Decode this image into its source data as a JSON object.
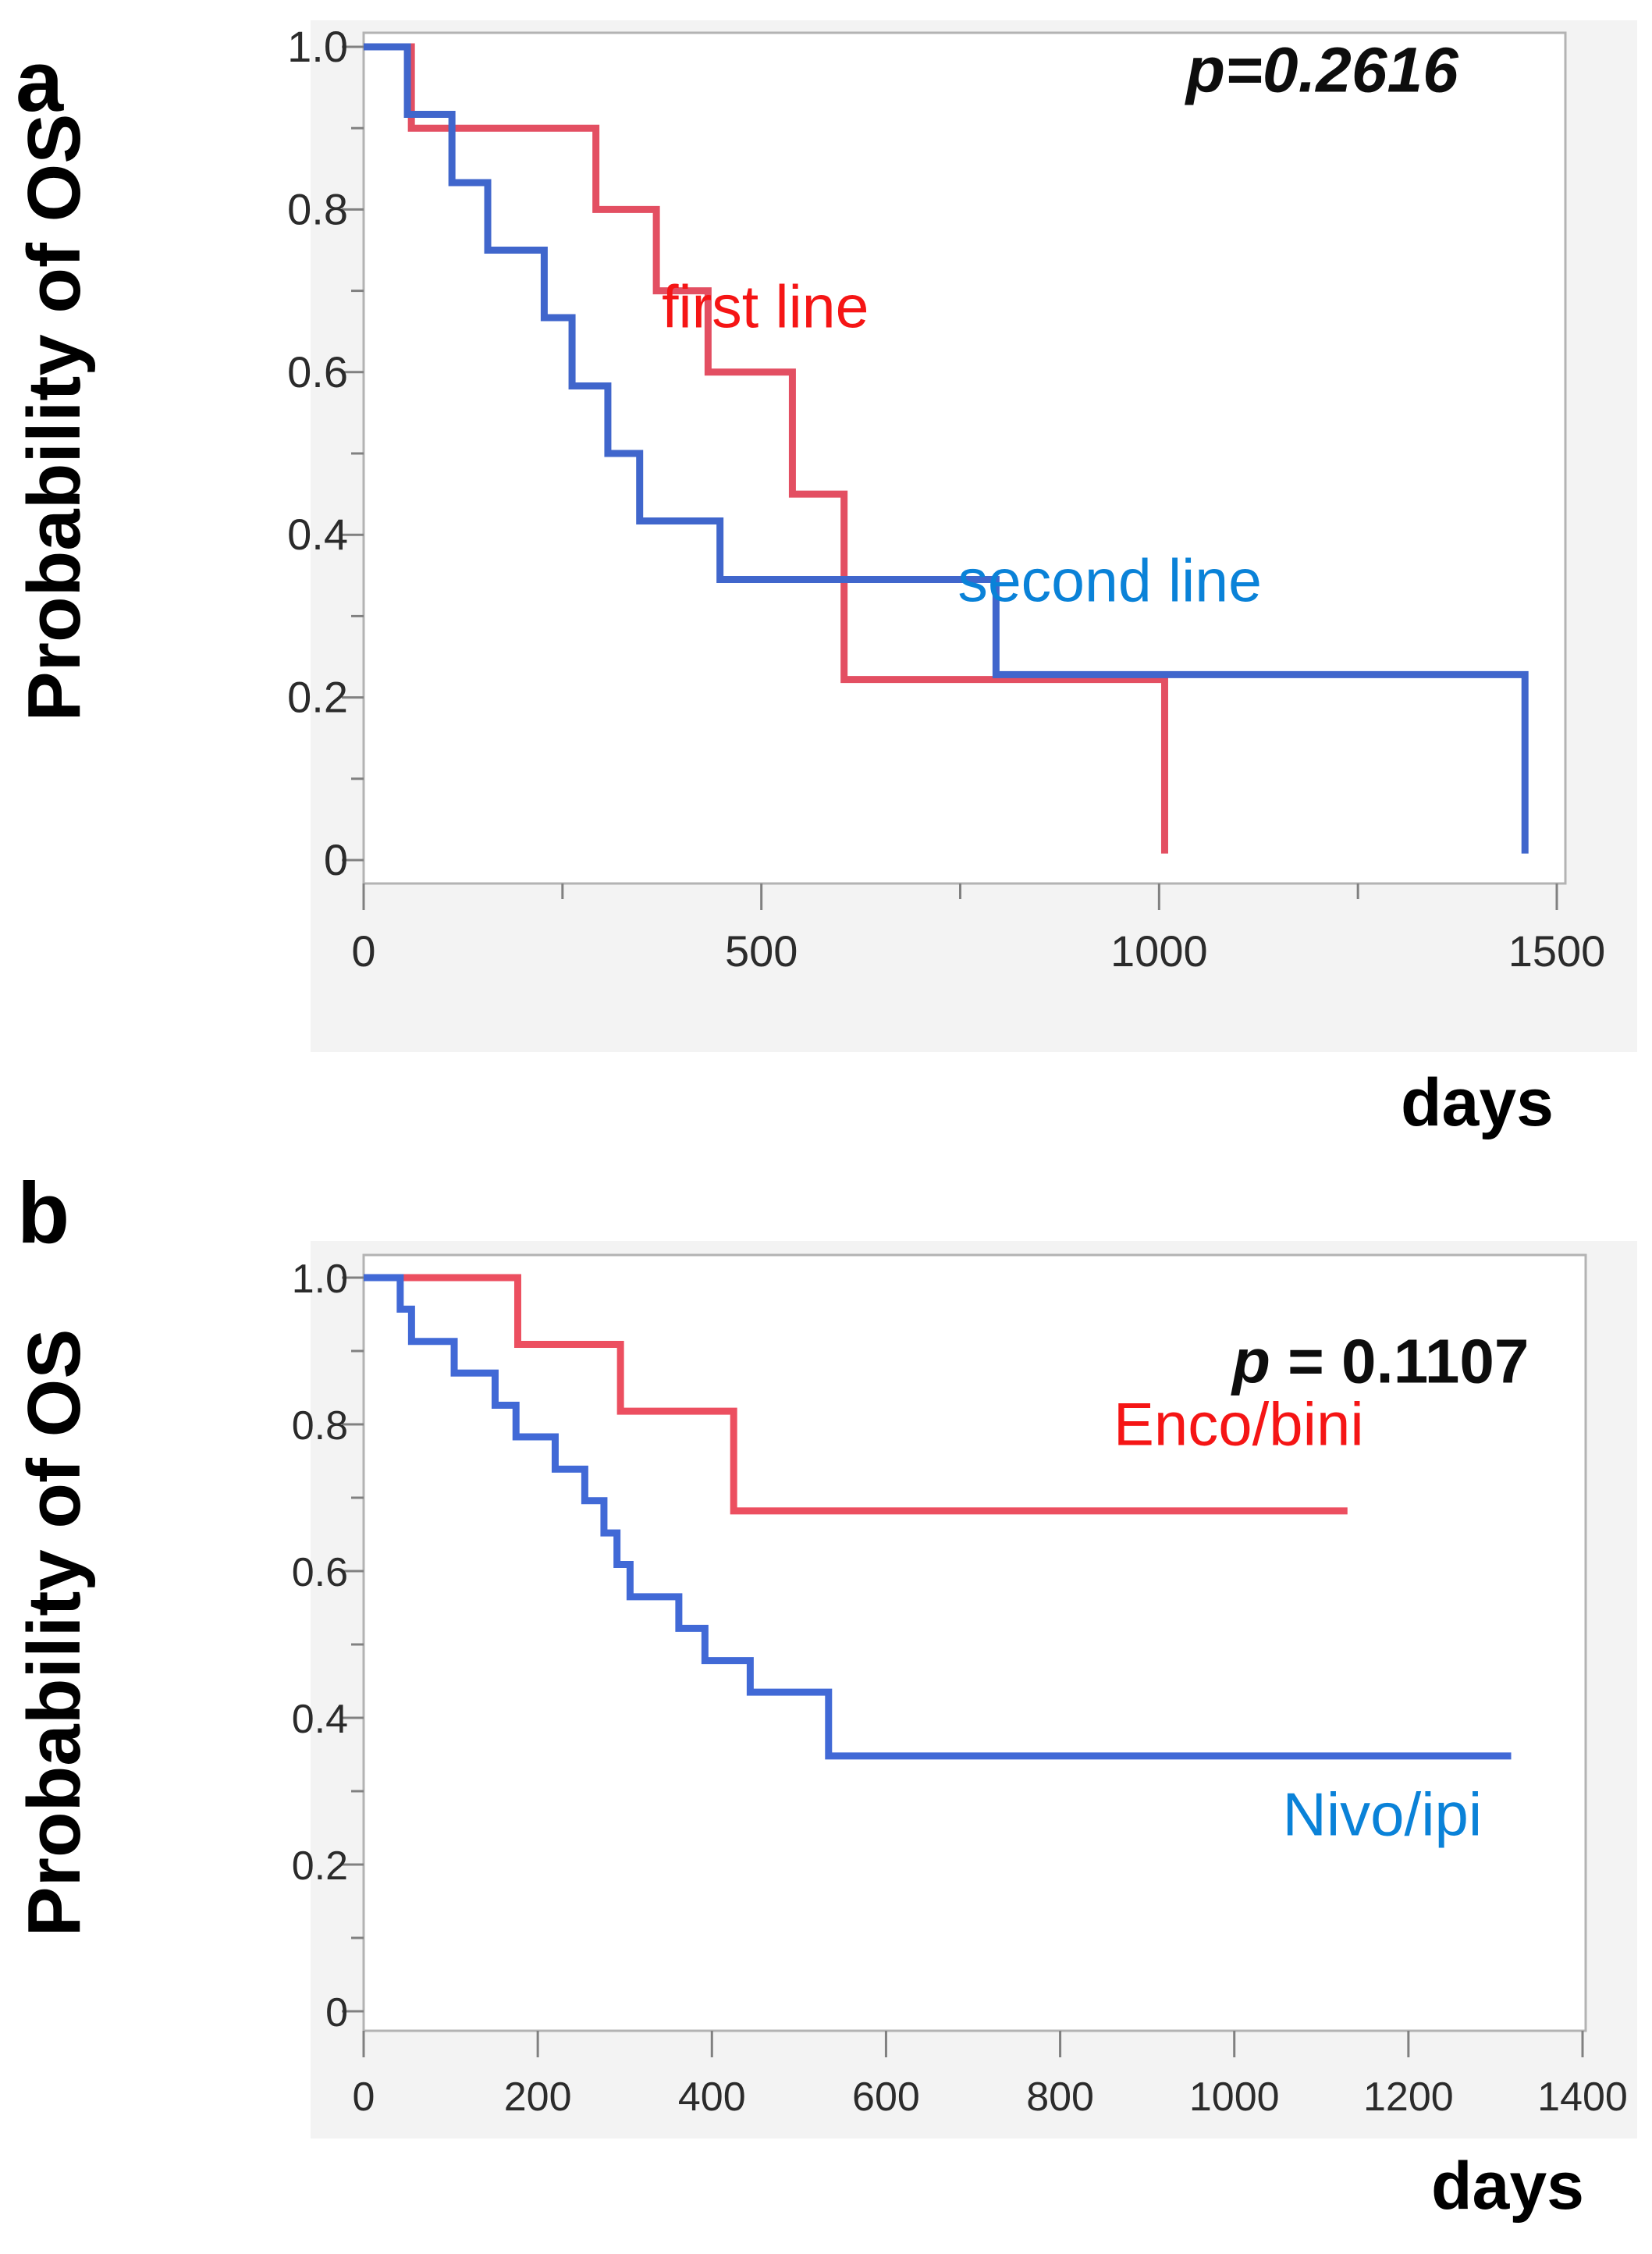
{
  "figure": {
    "panels": [
      {
        "corner_label": "a",
        "y_axis_title": "Probability of OS",
        "x_axis_title": "days"
      },
      {
        "corner_label": "b",
        "y_axis_title": "Probability of OS",
        "x_axis_title": "days"
      }
    ]
  },
  "chart_data": [
    {
      "type": "line",
      "subtype": "kaplan-meier-step",
      "panel": "a",
      "title": "",
      "xlabel": "days",
      "ylabel": "Probability of OS",
      "p_value_text": "p=0.2616",
      "p_prefix": "p",
      "p_rest": "=0.2616",
      "p_all_italic": true,
      "p_pos": [
        1205,
        0.945
      ],
      "xlim": [
        0,
        1512
      ],
      "ylim": [
        0,
        1.0
      ],
      "x_ticks": [
        0,
        500,
        1000,
        1500
      ],
      "x_minor_ticks": [
        250,
        750,
        1250
      ],
      "y_ticks": [
        {
          "v": 1.0,
          "label": "1.0"
        },
        {
          "v": 0.8,
          "label": "0.8"
        },
        {
          "v": 0.6,
          "label": "0.6"
        },
        {
          "v": 0.4,
          "label": "0.4"
        },
        {
          "v": 0.2,
          "label": "0.2"
        },
        {
          "v": 0.0,
          "label": "0"
        }
      ],
      "y_minor_ticks": [
        0.9,
        0.7,
        0.5,
        0.3,
        0.1
      ],
      "legend_position": "inline-annotations",
      "grid": false,
      "series": [
        {
          "name": "first line",
          "color": "#e34f62",
          "label_color": "#f51515",
          "label_pos": [
            505,
            0.655
          ],
          "start": [
            0,
            1.0
          ],
          "drops": [
            [
              60,
              0.9
            ],
            [
              292,
              0.8
            ],
            [
              368,
              0.7
            ],
            [
              433,
              0.6
            ],
            [
              539,
              0.45
            ],
            [
              604,
              0.222
            ],
            [
              1007,
              0.008
            ]
          ],
          "ends_with_drop": true,
          "end_x": 1007
        },
        {
          "name": "second line",
          "color": "#4066cc",
          "label_color": "#0a82d8",
          "label_pos": [
            938,
            0.318
          ],
          "start": [
            0,
            1.0
          ],
          "drops": [
            [
              55,
              0.917
            ],
            [
              111,
              0.833
            ],
            [
              156,
              0.75
            ],
            [
              227,
              0.667
            ],
            [
              262,
              0.583
            ],
            [
              307,
              0.5
            ],
            [
              347,
              0.417
            ],
            [
              448,
              0.345
            ],
            [
              795,
              0.228
            ],
            [
              1460,
              0.008
            ]
          ],
          "ends_with_drop": true,
          "end_x": 1460
        }
      ]
    },
    {
      "type": "line",
      "subtype": "kaplan-meier-step",
      "panel": "b",
      "title": "",
      "xlabel": "days",
      "ylabel": "Probability of OS",
      "p_value_text": "p = 0.1107",
      "p_prefix": "p",
      "p_rest": " = 0.1107",
      "p_all_italic": false,
      "p_pos": [
        1168,
        0.857
      ],
      "xlim": [
        0,
        1424
      ],
      "ylim": [
        0,
        1.0
      ],
      "x_ticks": [
        0,
        200,
        400,
        600,
        800,
        1000,
        1200,
        1400
      ],
      "x_minor_ticks": [],
      "y_ticks": [
        {
          "v": 1.0,
          "label": "1.0"
        },
        {
          "v": 0.8,
          "label": "0.8"
        },
        {
          "v": 0.6,
          "label": "0.6"
        },
        {
          "v": 0.4,
          "label": "0.4"
        },
        {
          "v": 0.2,
          "label": "0.2"
        },
        {
          "v": 0.0,
          "label": "0"
        }
      ],
      "y_minor_ticks": [
        0.9,
        0.7,
        0.5,
        0.3,
        0.1
      ],
      "legend_position": "inline-annotations",
      "grid": false,
      "series": [
        {
          "name": "Enco/bini",
          "color": "#ec4f60",
          "label_color": "#f51515",
          "label_pos": [
            1005,
            0.772
          ],
          "start": [
            0,
            1.0
          ],
          "drops": [
            [
              177,
              0.909
            ],
            [
              295,
              0.818
            ],
            [
              425,
              0.682
            ]
          ],
          "ends_with_drop": false,
          "end_x": 1130
        },
        {
          "name": "Nivo/ipi",
          "color": "#4169d6",
          "label_color": "#0a82d8",
          "label_pos": [
            1170,
            0.24
          ],
          "start": [
            0,
            1.0
          ],
          "drops": [
            [
              42,
              0.957
            ],
            [
              55,
              0.913
            ],
            [
              104,
              0.87
            ],
            [
              151,
              0.826
            ],
            [
              175,
              0.783
            ],
            [
              220,
              0.739
            ],
            [
              254,
              0.696
            ],
            [
              276,
              0.652
            ],
            [
              291,
              0.609
            ],
            [
              306,
              0.565
            ],
            [
              362,
              0.522
            ],
            [
              392,
              0.478
            ],
            [
              444,
              0.435
            ],
            [
              534,
              0.348
            ]
          ],
          "ends_with_drop": false,
          "end_x": 1318
        }
      ]
    }
  ]
}
